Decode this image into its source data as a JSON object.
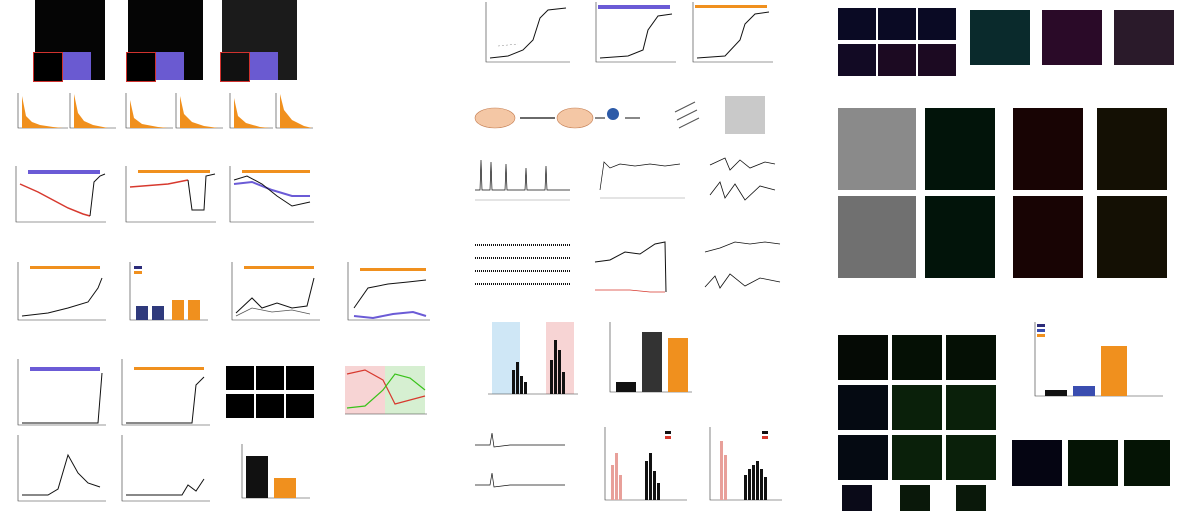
{
  "figure": {
    "left_panels": {
      "row1_images": 3,
      "row2_histograms": 6,
      "row3_traces": 3
    },
    "colors": {
      "purple": "#6b5bd6",
      "orange": "#f0901e",
      "black": "#111111",
      "red": "#d7392e",
      "green": "#39c21a",
      "blue": "#2c2cc7",
      "light_blue": "#cfe7f6",
      "pink": "#f7d4d4"
    }
  }
}
